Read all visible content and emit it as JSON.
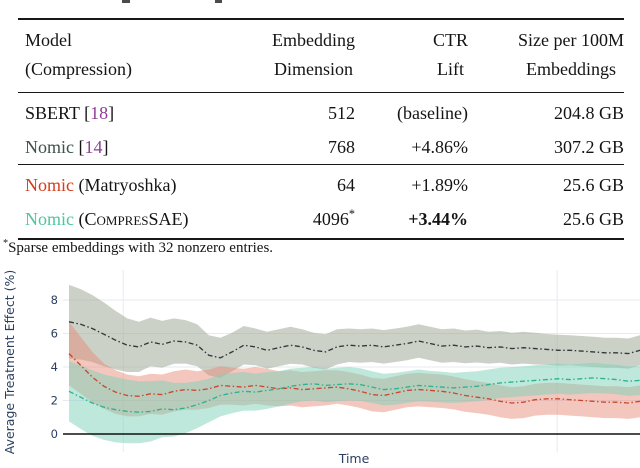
{
  "colors": {
    "ink": "#141414",
    "ref_purple": "#8f3d96",
    "nomic_plain": "#3e524c",
    "nomic_matryoshka": "#d63c1a",
    "nomic_compressae": "#4ec79e",
    "axis_label": "#2a3f5f",
    "gridline": "#e7eaf2",
    "zeroline": "#101010"
  },
  "table": {
    "headers": {
      "col1": [
        "Model",
        "(Compression)"
      ],
      "col2": [
        "Embedding",
        "Dimension"
      ],
      "col3": [
        "CTR",
        "Lift"
      ],
      "col4": [
        "Size per 100M",
        "Embeddings"
      ]
    },
    "rows": [
      {
        "cells": [
          [
            {
              "t": "SBERT "
            },
            {
              "t": "["
            },
            {
              "t": "18",
              "colorKey": "ref_purple",
              "name": "citation-link",
              "link": true
            },
            {
              "t": "]"
            }
          ],
          [
            {
              "t": "512"
            }
          ],
          [
            {
              "t": "(baseline)"
            }
          ],
          [
            {
              "t": "204.8 GB"
            }
          ]
        ],
        "group": 1
      },
      {
        "cells": [
          [
            {
              "t": "Nomic ",
              "colorKey": "nomic_plain"
            },
            {
              "t": "["
            },
            {
              "t": "14",
              "colorKey": "ref_purple",
              "name": "citation-link",
              "link": true
            },
            {
              "t": "]"
            }
          ],
          [
            {
              "t": "768"
            }
          ],
          [
            {
              "t": "+4.86%"
            }
          ],
          [
            {
              "t": "307.2 GB"
            }
          ]
        ],
        "group": 1
      },
      {
        "cells": [
          [
            {
              "t": "Nomic ",
              "colorKey": "nomic_matryoshka"
            },
            {
              "t": "(Matryoshka)"
            }
          ],
          [
            {
              "t": "64"
            }
          ],
          [
            {
              "t": "+1.89%"
            }
          ],
          [
            {
              "t": "25.6 GB"
            }
          ]
        ],
        "group": 2
      },
      {
        "cells": [
          [
            {
              "t": "Nomic ",
              "colorKey": "nomic_compressae"
            },
            {
              "t": "("
            },
            {
              "t": "Compres",
              "sc": true
            },
            {
              "t": "SAE)"
            }
          ],
          [
            {
              "t": "4096"
            },
            {
              "t": "*",
              "sup": true
            }
          ],
          [
            {
              "t": "+3.44%",
              "bold": true
            }
          ],
          [
            {
              "t": "25.6 GB"
            }
          ]
        ],
        "group": 2
      }
    ],
    "footnote": [
      {
        "t": "*",
        "sup": true
      },
      {
        "t": "Sparse embeddings with 32 nonzero entries."
      }
    ]
  },
  "chart_data": {
    "type": "line",
    "title": "",
    "xlabel": "Time",
    "ylabel": "Average Treatment Effect (%)",
    "ytick_labels": [
      "0",
      "2",
      "4",
      "6",
      "8"
    ],
    "yticks": [
      0,
      2,
      4,
      6,
      8
    ],
    "ylim": [
      -1.1,
      9.8
    ],
    "x_axis": {
      "label": "Time",
      "tick_labels_visible": false,
      "unit": "time (unlabeled)"
    },
    "legend_position": "none",
    "grid": true,
    "vertical_gridlines_x_percent": [
      9.5,
      85.5
    ],
    "series": [
      {
        "name": "Nomic",
        "line_color": "#34383a",
        "band_color": "#99a390",
        "band_opacity": 0.5,
        "values": [
          6.7,
          6.55,
          6.3,
          5.95,
          5.6,
          5.3,
          5.2,
          5.5,
          5.35,
          5.55,
          5.5,
          5.3,
          4.7,
          4.55,
          4.9,
          5.3,
          5.2,
          5.0,
          5.15,
          5.3,
          5.2,
          5.0,
          4.9,
          5.2,
          5.3,
          5.25,
          5.3,
          5.2,
          5.3,
          5.4,
          5.55,
          5.4,
          5.25,
          5.3,
          5.2,
          5.25,
          5.15,
          5.2,
          5.1,
          5.15,
          5.1,
          5.05,
          5.0,
          5.0,
          4.95,
          4.9,
          4.85,
          4.85,
          4.8,
          5.0
        ],
        "band_halfwidth": [
          2.2,
          2.1,
          2.0,
          1.9,
          1.75,
          1.6,
          1.5,
          1.45,
          1.4,
          1.35,
          1.3,
          1.25,
          1.2,
          1.2,
          1.15,
          1.15,
          1.1,
          1.1,
          1.1,
          1.1,
          1.05,
          1.05,
          1.05,
          1.05,
          1.0,
          1.0,
          1.0,
          1.0,
          1.0,
          1.0,
          1.0,
          1.0,
          1.0,
          1.0,
          0.98,
          0.98,
          0.95,
          0.95,
          0.95,
          0.95,
          0.95,
          0.92,
          0.92,
          0.9,
          0.9,
          0.9,
          0.9,
          0.9,
          0.9,
          0.9
        ]
      },
      {
        "name": "Nomic (Matryoshka)",
        "line_color": "#c8492e",
        "band_color": "#e5836e",
        "band_opacity": 0.45,
        "values": [
          4.8,
          4.1,
          3.4,
          2.85,
          2.5,
          2.3,
          2.25,
          2.4,
          2.35,
          2.55,
          2.65,
          2.6,
          2.7,
          2.9,
          2.85,
          2.8,
          2.9,
          2.8,
          2.7,
          2.75,
          2.65,
          2.7,
          2.75,
          2.8,
          2.7,
          2.55,
          2.35,
          2.3,
          2.45,
          2.6,
          2.65,
          2.6,
          2.55,
          2.45,
          2.3,
          2.2,
          2.1,
          1.95,
          1.85,
          1.9,
          2.05,
          2.1,
          2.1,
          2.05,
          2.0,
          1.95,
          1.9,
          1.9,
          1.85,
          1.95
        ],
        "band_halfwidth": [
          1.9,
          1.7,
          1.5,
          1.35,
          1.3,
          1.25,
          1.2,
          1.2,
          1.2,
          1.2,
          1.2,
          1.15,
          1.15,
          1.15,
          1.1,
          1.1,
          1.1,
          1.1,
          1.05,
          1.05,
          1.05,
          1.05,
          1.05,
          1.0,
          1.0,
          1.0,
          1.0,
          1.0,
          1.0,
          1.0,
          1.0,
          1.0,
          1.0,
          0.98,
          0.98,
          0.95,
          0.95,
          0.95,
          0.95,
          0.95,
          0.95,
          0.95,
          0.95,
          0.95,
          0.95,
          0.95,
          0.95,
          0.95,
          0.95,
          0.95
        ]
      },
      {
        "name": "Nomic (CompresSAE)",
        "line_color": "#2eb28e",
        "band_color": "#7dd2b8",
        "band_opacity": 0.5,
        "values": [
          2.55,
          2.2,
          1.85,
          1.6,
          1.45,
          1.35,
          1.3,
          1.35,
          1.5,
          1.45,
          1.55,
          1.75,
          2.0,
          2.3,
          2.45,
          2.55,
          2.5,
          2.6,
          2.7,
          2.85,
          2.95,
          3.0,
          2.9,
          2.95,
          3.0,
          2.95,
          2.8,
          2.65,
          2.7,
          2.8,
          2.9,
          2.85,
          2.8,
          2.75,
          2.8,
          2.85,
          2.95,
          3.05,
          3.1,
          3.15,
          3.2,
          3.25,
          3.3,
          3.25,
          3.3,
          3.35,
          3.3,
          3.25,
          3.15,
          3.2
        ],
        "band_halfwidth": [
          1.8,
          1.9,
          1.95,
          1.95,
          1.95,
          1.9,
          1.85,
          1.8,
          1.7,
          1.6,
          1.5,
          1.4,
          1.3,
          1.25,
          1.2,
          1.15,
          1.1,
          1.1,
          1.05,
          1.05,
          1.0,
          1.0,
          1.0,
          1.0,
          1.0,
          0.98,
          0.95,
          0.95,
          0.95,
          0.95,
          0.95,
          0.92,
          0.92,
          0.9,
          0.9,
          0.9,
          0.9,
          0.9,
          0.9,
          0.9,
          0.9,
          0.9,
          0.9,
          0.9,
          0.9,
          0.9,
          0.88,
          0.88,
          0.88,
          0.88
        ]
      }
    ]
  }
}
